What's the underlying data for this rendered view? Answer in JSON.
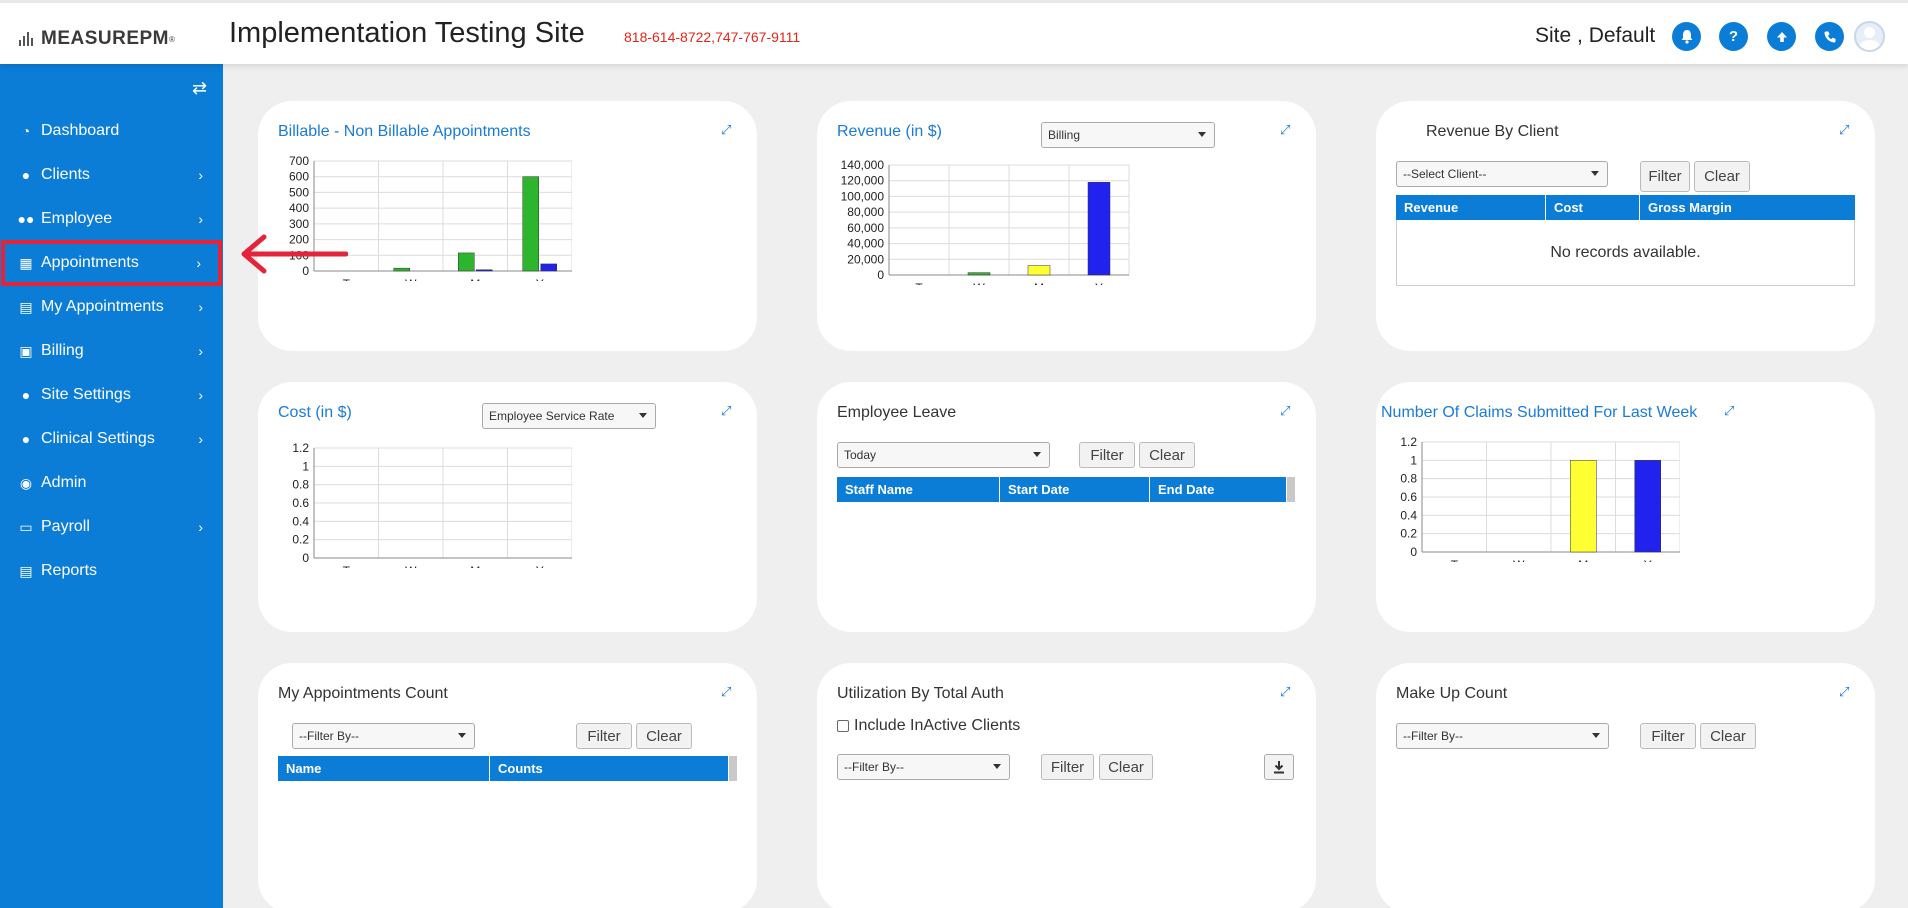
{
  "header": {
    "logo_text": "MEASUREPM",
    "logo_tm": "®",
    "site_title": "Implementation Testing Site",
    "phones": "818-614-8722,747-767-9111",
    "user_name": "Site , Default",
    "icons": [
      "bell-icon",
      "help-icon",
      "upload-icon",
      "phone-icon",
      "user-avatar-icon"
    ]
  },
  "sidebar": {
    "items": [
      {
        "label": "Dashboard",
        "icon": "dashboard-icon",
        "chevron": false
      },
      {
        "label": "Clients",
        "icon": "user-icon",
        "chevron": true
      },
      {
        "label": "Employee",
        "icon": "users-icon",
        "chevron": true
      },
      {
        "label": "Appointments",
        "icon": "calendar-icon",
        "chevron": true
      },
      {
        "label": "My Appointments",
        "icon": "document-icon",
        "chevron": true
      },
      {
        "label": "Billing",
        "icon": "money-icon",
        "chevron": true
      },
      {
        "label": "Site Settings",
        "icon": "user-icon",
        "chevron": true
      },
      {
        "label": "Clinical Settings",
        "icon": "user-icon",
        "chevron": true
      },
      {
        "label": "Admin",
        "icon": "user-circle-icon",
        "chevron": false
      },
      {
        "label": "Payroll",
        "icon": "credit-card-icon",
        "chevron": true
      },
      {
        "label": "Reports",
        "icon": "report-icon",
        "chevron": false
      }
    ],
    "highlighted": "Appointments"
  },
  "cards": {
    "billable": {
      "title": "Billable - Non Billable Appointments"
    },
    "revenue": {
      "title": "Revenue (in $)",
      "select": "Billing"
    },
    "revenue_by_client": {
      "title": "Revenue By Client",
      "select": "--Select Client--",
      "filter": "Filter",
      "clear": "Clear",
      "columns": [
        "Revenue",
        "Cost",
        "Gross Margin"
      ],
      "empty": "No records available."
    },
    "cost": {
      "title": "Cost (in $)",
      "select": "Employee Service Rate"
    },
    "employee_leave": {
      "title": "Employee Leave",
      "select": "Today",
      "filter": "Filter",
      "clear": "Clear",
      "columns": [
        "Staff Name",
        "Start Date",
        "End Date"
      ]
    },
    "claims": {
      "title": "Number Of Claims Submitted For Last Week"
    },
    "my_appointments_count": {
      "title": "My Appointments Count",
      "select": "--Filter By--",
      "filter": "Filter",
      "clear": "Clear",
      "columns": [
        "Name",
        "Counts"
      ]
    },
    "utilization": {
      "title": "Utilization By Total Auth",
      "checkbox": "Include InActive Clients",
      "select": "--Filter By--",
      "filter": "Filter",
      "clear": "Clear"
    },
    "make_up": {
      "title": "Make Up Count",
      "select": "--Filter By--",
      "filter": "Filter",
      "clear": "Clear"
    }
  },
  "chart_data": [
    {
      "id": "billable",
      "type": "bar",
      "categories": [
        "T",
        "W",
        "M",
        "Y"
      ],
      "series": [
        {
          "values": [
            0,
            18,
            115,
            600
          ],
          "color": "#2db52d"
        },
        {
          "values": [
            0,
            0,
            8,
            45
          ],
          "color": "#2222ee"
        }
      ],
      "ylim": [
        0,
        700
      ],
      "yticks": [
        0,
        100,
        200,
        300,
        400,
        500,
        600,
        700
      ],
      "ytick_labels": [
        "0",
        "100",
        "200",
        "300",
        "400",
        "500",
        "600",
        "700"
      ],
      "grid": true
    },
    {
      "id": "revenue",
      "type": "bar",
      "categories": [
        "T",
        "W",
        "M",
        "Y"
      ],
      "values": [
        0,
        3000,
        12000,
        118000
      ],
      "colors": [
        "#2222ee",
        "#2db52d",
        "#ffff33",
        "#2222ee"
      ],
      "ylim": [
        0,
        140000
      ],
      "yticks": [
        0,
        20000,
        40000,
        60000,
        80000,
        100000,
        120000,
        140000
      ],
      "ytick_labels": [
        "0",
        "20,000",
        "40,000",
        "60,000",
        "80,000",
        "100,000",
        "120,000",
        "140,000"
      ],
      "grid": true
    },
    {
      "id": "cost",
      "type": "bar",
      "categories": [
        "T",
        "W",
        "M",
        "Y"
      ],
      "values": [
        0,
        0,
        0,
        0
      ],
      "ylim": [
        0,
        1.2
      ],
      "yticks": [
        0,
        0.2,
        0.4,
        0.6,
        0.8,
        1,
        1.2
      ],
      "ytick_labels": [
        "0",
        "0.2",
        "0.4",
        "0.6",
        "0.8",
        "1",
        "1.2"
      ],
      "grid": true
    },
    {
      "id": "claims",
      "type": "bar",
      "categories": [
        "T",
        "W",
        "M",
        "Y"
      ],
      "values": [
        0,
        0,
        1,
        1
      ],
      "colors": [
        "#2222ee",
        "#2db52d",
        "#ffff33",
        "#2222ee"
      ],
      "ylim": [
        0,
        1.2
      ],
      "yticks": [
        0,
        0.2,
        0.4,
        0.6,
        0.8,
        1,
        1.2
      ],
      "ytick_labels": [
        "0",
        "0.2",
        "0.4",
        "0.6",
        "0.8",
        "1",
        "1.2"
      ],
      "grid": true
    }
  ]
}
